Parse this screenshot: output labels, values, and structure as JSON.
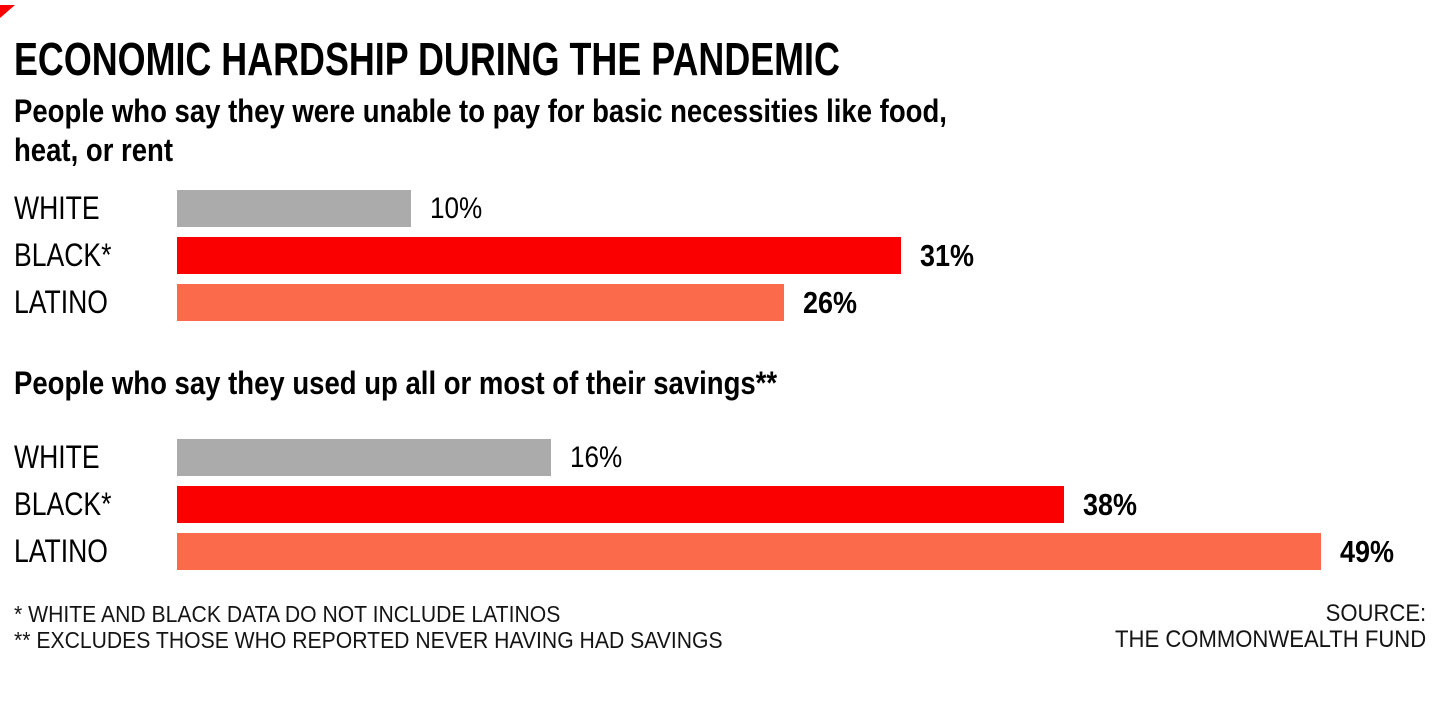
{
  "title": "ECONOMIC HARDSHIP DURING THE PANDEMIC",
  "colors": {
    "accent": "#fb0000",
    "red": "#fb0000",
    "orange": "#fa6a4b",
    "gray": "#ababab"
  },
  "sections": [
    {
      "subtitle_lines": [
        "People who say they were unable to pay for basic necessities like food,",
        "heat, or rent"
      ],
      "rows": [
        {
          "label": "WHITE",
          "value": 10,
          "display": "10%",
          "color": "#ababab",
          "emphasis": false
        },
        {
          "label": "BLACK*",
          "value": 31,
          "display": "31%",
          "color": "#fb0000",
          "emphasis": true
        },
        {
          "label": "LATINO",
          "value": 26,
          "display": "26%",
          "color": "#fa6a4b",
          "emphasis": true
        }
      ]
    },
    {
      "subtitle_lines": [
        "People who say they used up all or most of their savings**"
      ],
      "rows": [
        {
          "label": "WHITE",
          "value": 16,
          "display": "16%",
          "color": "#ababab",
          "emphasis": false
        },
        {
          "label": "BLACK*",
          "value": 38,
          "display": "38%",
          "color": "#fb0000",
          "emphasis": true
        },
        {
          "label": "LATINO",
          "value": 49,
          "display": "49%",
          "color": "#fa6a4b",
          "emphasis": true
        }
      ]
    }
  ],
  "footnotes": [
    "* WHITE AND BLACK DATA DO NOT INCLUDE LATINOS",
    "** EXCLUDES THOSE WHO REPORTED NEVER HAVING HAD SAVINGS"
  ],
  "source_lines": [
    "SOURCE:",
    "THE COMMONWEALTH FUND"
  ],
  "chart_data": [
    {
      "type": "bar",
      "orientation": "horizontal",
      "title": "People who say they were unable to pay for basic necessities like food, heat, or rent",
      "categories": [
        "WHITE",
        "BLACK*",
        "LATINO"
      ],
      "values": [
        10,
        31,
        26
      ],
      "value_labels": [
        "10%",
        "31%",
        "26%"
      ],
      "unit": "percent",
      "bar_colors": [
        "#ababab",
        "#fb0000",
        "#fa6a4b"
      ],
      "xlim": [
        0,
        52
      ],
      "grid": false,
      "legend": false
    },
    {
      "type": "bar",
      "orientation": "horizontal",
      "title": "People who say they used up all or most of their savings**",
      "categories": [
        "WHITE",
        "BLACK*",
        "LATINO"
      ],
      "values": [
        16,
        38,
        49
      ],
      "value_labels": [
        "16%",
        "38%",
        "49%"
      ],
      "unit": "percent",
      "bar_colors": [
        "#ababab",
        "#fb0000",
        "#fa6a4b"
      ],
      "xlim": [
        0,
        52
      ],
      "grid": false,
      "legend": false
    }
  ]
}
